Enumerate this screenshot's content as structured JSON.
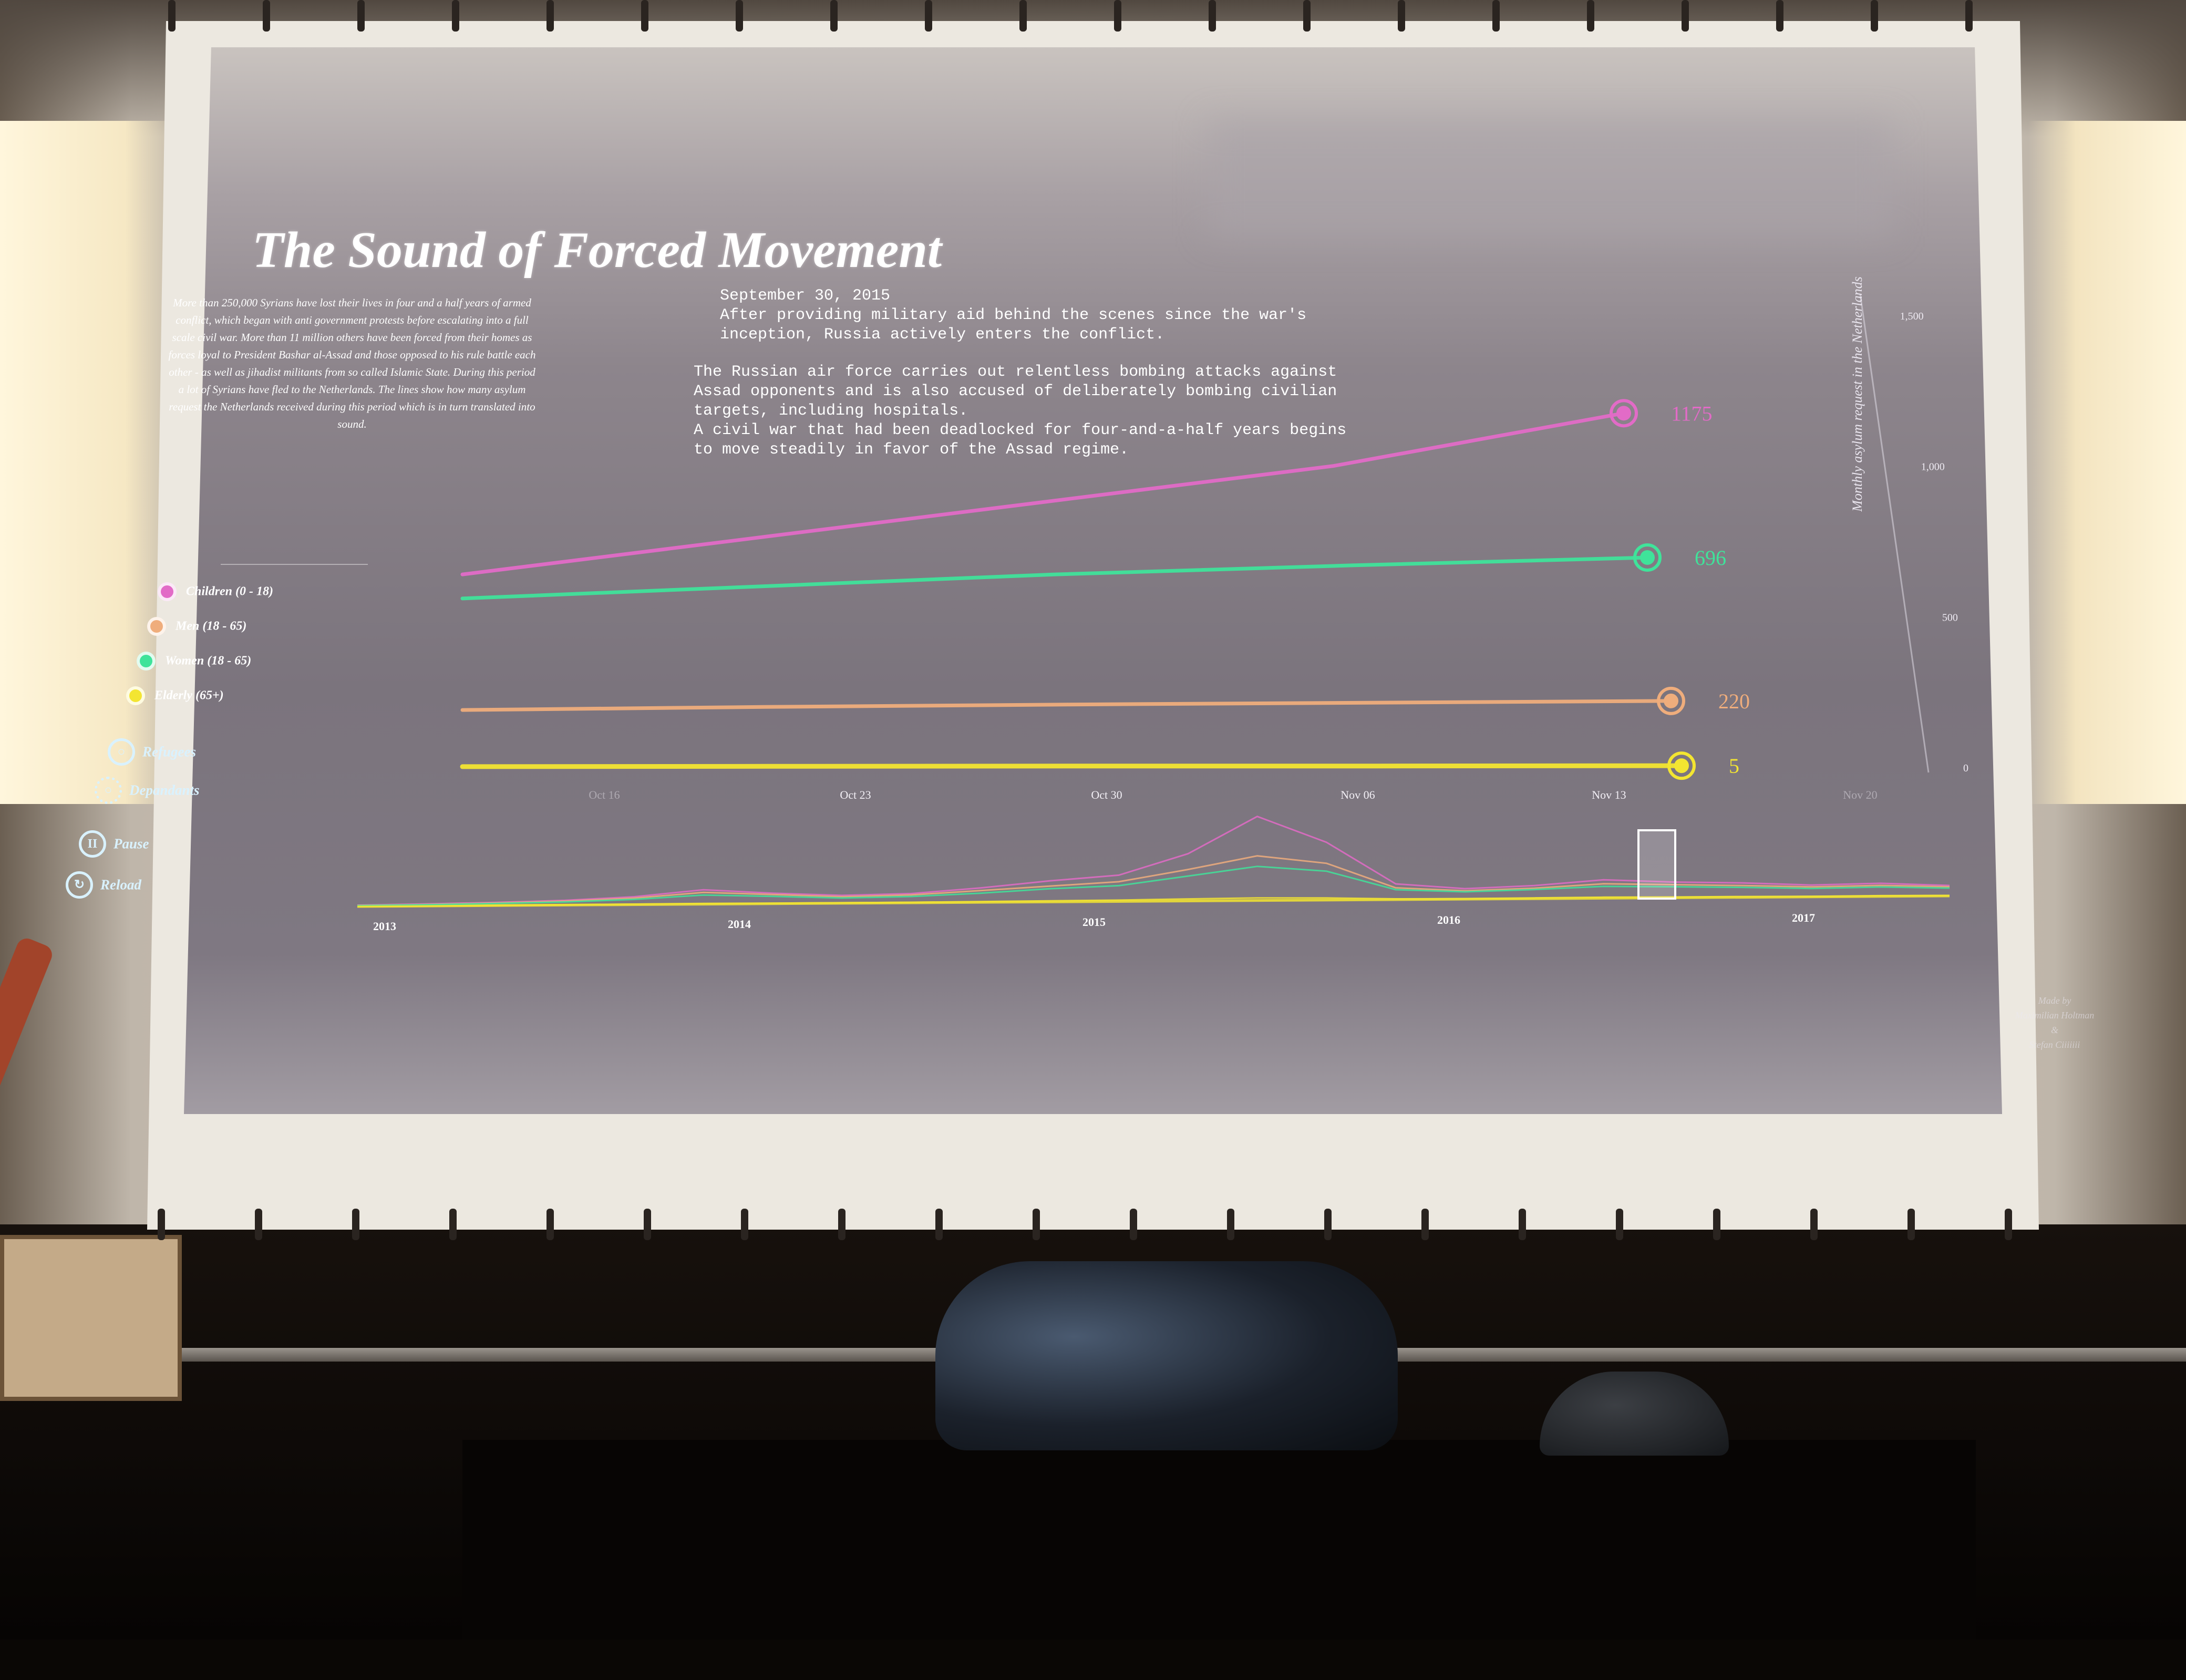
{
  "scene": {
    "room_description": "",
    "colors": {
      "projection_bg": "#8d858c",
      "children": "#e26bc7",
      "men": "#efad7c",
      "women": "#3fe39a",
      "elderly": "#f3e531",
      "controls": "#d9f2ff"
    }
  },
  "viz": {
    "title": "The Sound of Forced Movement",
    "intro": "More than 250,000 Syrians have lost their lives in four and a half years of armed conflict, which began with anti government protests before escalating into a full scale civil war. More than 11 million others have been forced from their homes as forces loyal to President Bashar al-Assad and those opposed to his rule battle each other - as well as jihadist militants from so called Islamic State. During this period a lot of Syrians have fled to the Netherlands. The lines show how many asylum request the Netherlands received during this period which is in turn translated into sound.",
    "event": {
      "date": "September 30, 2015",
      "para1": "After providing military aid behind the scenes since the war's inception, Russia actively enters the conflict.",
      "para2": "The Russian air force carries out relentless bombing attacks against Assad opponents and is also accused of deliberately bombing civilian targets, including hospitals.",
      "para3": "A civil war that had been deadlocked for four-and-a-half years begins to move steadily in favor of the Assad regime."
    },
    "legend": [
      {
        "label": "Children (0 - 18)",
        "color": "#e26bc7"
      },
      {
        "label": "Men (18 - 65)",
        "color": "#efad7c"
      },
      {
        "label": "Women (18 - 65)",
        "color": "#3fe39a"
      },
      {
        "label": "Elderly (65+)",
        "color": "#f3e531"
      }
    ],
    "type_legend": [
      {
        "label": "Refugees",
        "icon": "ring-icon"
      },
      {
        "label": "Depandants",
        "icon": "dotted-ring-icon"
      }
    ],
    "controls": {
      "pause_label": "Pause",
      "pause_icon": "pause-icon",
      "reload_label": "Reload",
      "reload_icon": "reload-icon"
    },
    "credits": {
      "line1": "Made by",
      "line2": "Maximilian Holtman",
      "line3": "&",
      "line4": "Stefan Ciiiiiii"
    }
  },
  "chart_data": [
    {
      "type": "line",
      "ylabel": "Monthly asylum request in the Netherlands",
      "ylim": [
        0,
        1500
      ],
      "y_ticks": [
        "1,500",
        "1,000",
        "500",
        "0"
      ],
      "x_ticks": [
        "Oct 16",
        "Oct 23",
        "Oct 30",
        "Nov 06",
        "Nov 13",
        "Nov 20"
      ],
      "series": [
        {
          "name": "Children (0 - 18)",
          "color": "#e26bc7",
          "end_value": 1175,
          "end_label": "1175",
          "values": [
            640,
            760,
            880,
            1000,
            1175
          ]
        },
        {
          "name": "Women (18 - 65)",
          "color": "#3fe39a",
          "end_value": 696,
          "end_label": "696",
          "values": [
            560,
            600,
            640,
            670,
            696
          ]
        },
        {
          "name": "Men (18 - 65)",
          "color": "#efad7c",
          "end_value": 220,
          "end_label": "220",
          "values": [
            190,
            200,
            208,
            214,
            220
          ]
        },
        {
          "name": "Elderly (65+)",
          "color": "#f3e531",
          "end_value": 5,
          "end_label": "5",
          "values": [
            2,
            3,
            4,
            4,
            5
          ]
        }
      ]
    },
    {
      "type": "line",
      "x_ticks": [
        "2013",
        "2014",
        "2015",
        "2016",
        "2017"
      ],
      "brush_position": "2015-10",
      "series": [
        {
          "name": "Children (0 - 18)",
          "color": "#e26bc7",
          "values": [
            5,
            8,
            12,
            18,
            30,
            55,
            40,
            30,
            35,
            55,
            80,
            100,
            180,
            320,
            220,
            60,
            40,
            50,
            70,
            60,
            55,
            45,
            50,
            40
          ]
        },
        {
          "name": "Men (18 - 65)",
          "color": "#efad7c",
          "values": [
            4,
            6,
            10,
            15,
            25,
            45,
            35,
            25,
            30,
            45,
            60,
            75,
            120,
            170,
            140,
            45,
            32,
            40,
            55,
            50,
            45,
            38,
            42,
            35
          ]
        },
        {
          "name": "Women (18 - 65)",
          "color": "#3fe39a",
          "values": [
            3,
            5,
            8,
            12,
            20,
            35,
            28,
            20,
            24,
            35,
            50,
            60,
            95,
            130,
            110,
            38,
            28,
            35,
            45,
            42,
            38,
            32,
            36,
            30
          ]
        },
        {
          "name": "Elderly (65+)",
          "color": "#f3e531",
          "values": [
            0,
            0,
            1,
            1,
            2,
            3,
            2,
            2,
            2,
            3,
            4,
            5,
            8,
            10,
            8,
            3,
            2,
            3,
            4,
            3,
            3,
            2,
            3,
            2
          ]
        }
      ]
    }
  ]
}
